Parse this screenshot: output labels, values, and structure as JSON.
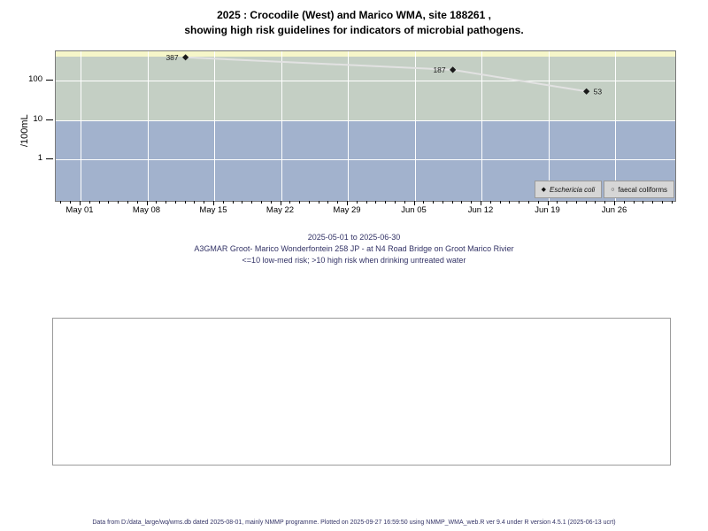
{
  "title": {
    "line1": "2025 : Crocodile (West) and Marico WMA, site 188261 ,",
    "line2": "showing high risk guidelines for indicators of microbial pathogens."
  },
  "chart_data": {
    "type": "line",
    "log_scale": true,
    "ylabel": "/100mL",
    "y_ticks": [
      100,
      10,
      1
    ],
    "x_tick_labels": [
      "May 01",
      "May 08",
      "May 15",
      "May 22",
      "May 29",
      "Jun 05",
      "Jun 12",
      "Jun 19",
      "Jun 26"
    ],
    "x_range": [
      "2025-05-01",
      "2025-06-30"
    ],
    "risk_bands": [
      {
        "name": "upper-band",
        "max": null,
        "min": 400,
        "color": "#f6f6c9"
      },
      {
        "name": "middle-band",
        "max": 400,
        "min": 10,
        "color": "#c4cfc4"
      },
      {
        "name": "lower-band",
        "max": 10,
        "min": null,
        "color": "#a2b2cd"
      }
    ],
    "series": [
      {
        "name": "Eschericia coli",
        "marker": "filled-diamond",
        "line_color": "#e2e2e2",
        "marker_color": "#1a1a1a",
        "points": [
          {
            "date": "2025-05-12",
            "value": 387,
            "label": "387",
            "label_side": "left"
          },
          {
            "date": "2025-06-09",
            "value": 187,
            "label": "187",
            "label_side": "left"
          },
          {
            "date": "2025-06-23",
            "value": 53,
            "label": "53",
            "label_side": "right"
          }
        ]
      },
      {
        "name": "faecal coliforms",
        "marker": "open-circle",
        "points": []
      }
    ]
  },
  "legend": {
    "items": [
      {
        "symbol": "◆",
        "label": "Eschericia coli"
      },
      {
        "symbol": "○",
        "label": "faecal coliforms"
      }
    ]
  },
  "subtitle": {
    "line1": "2025-05-01 to 2025-06-30",
    "line2": "A3GMAR Groot- Marico Wonderfontein 258 JP - at N4 Road Bridge on Groot Marico Rivier",
    "line3": "<=10 low-med risk; >10 high risk when drinking untreated water"
  },
  "footer": {
    "text": "Data from D:/data_large/wq/wms.db dated 2025-08-01, mainly NMMP programme. Plotted on 2025-09-27 16:59:50 using NMMP_WMA_web.R ver 9.4 under R version 4.5.1 (2025-06-13 ucrt)"
  }
}
